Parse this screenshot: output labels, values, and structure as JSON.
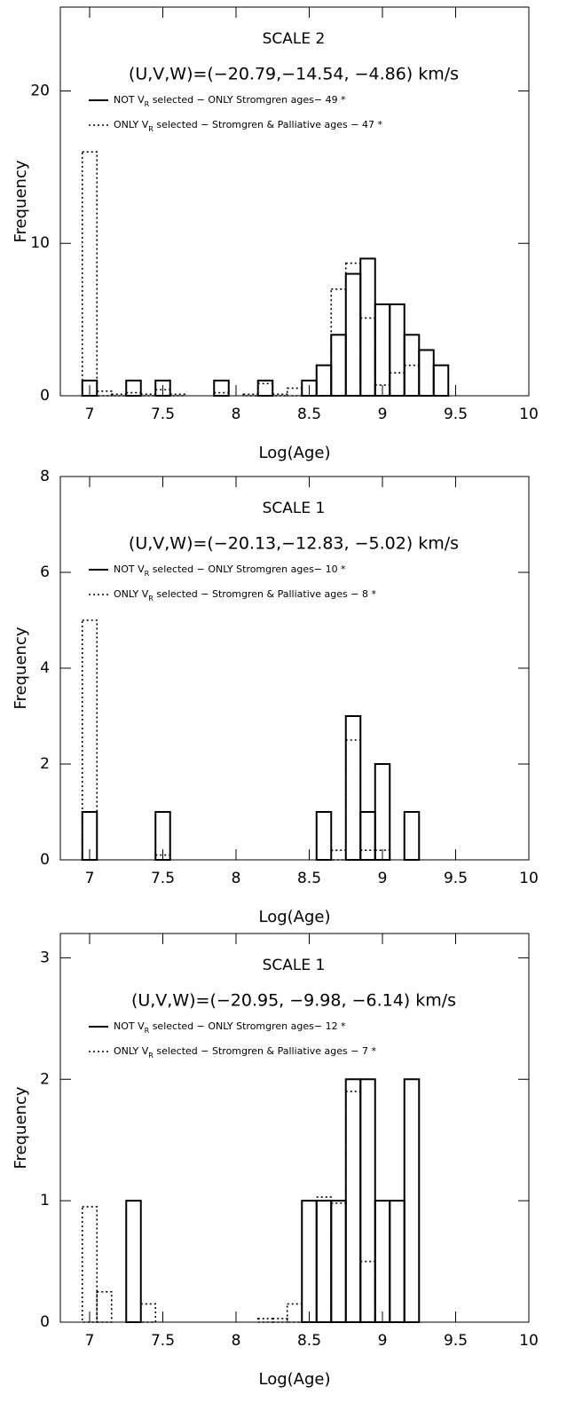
{
  "chart_data": [
    {
      "type": "histogram",
      "title": "SCALE  2",
      "subtitle": "(U,V,W)=(−20.79,−14.54, −4.86) km/s",
      "x_label": "Log(Age)",
      "y_label": "Frequency",
      "bins": [
        6.95,
        7.05,
        7.15,
        7.25,
        7.35,
        7.45,
        7.55,
        7.65,
        7.75,
        7.85,
        7.95,
        8.05,
        8.15,
        8.25,
        8.35,
        8.45,
        8.55,
        8.65,
        8.75,
        8.85,
        8.95,
        9.05,
        9.15,
        9.25,
        9.35,
        9.45
      ],
      "series": [
        {
          "name": "NOT V_R selected  −  ONLY Stromgren ages− 49 *",
          "color": "#000000",
          "linestyle": "solid",
          "values": [
            1,
            0,
            0,
            1,
            0,
            1,
            0,
            0,
            0,
            1,
            0,
            0,
            1,
            0,
            0,
            1,
            2,
            4,
            8,
            9,
            6,
            6,
            4,
            3,
            2
          ]
        },
        {
          "name": "ONLY V_R selected  −  Stromgren & Palliative ages  −  47 *",
          "color": "#000000",
          "linestyle": "dotted",
          "values": [
            16,
            0.3,
            0.1,
            0.2,
            0.1,
            0.4,
            0.1,
            0,
            0,
            0.2,
            0,
            0.1,
            0.8,
            0.1,
            0.5,
            1,
            2,
            7,
            8.7,
            5.1,
            0.7,
            1.5,
            2,
            0,
            0
          ]
        }
      ],
      "xlim": [
        6.8,
        10
      ],
      "xticks": [
        7,
        7.5,
        8,
        8.5,
        9,
        9.5,
        10
      ],
      "ylim": [
        0,
        25.5
      ],
      "yticks": [
        0,
        10,
        20
      ]
    },
    {
      "type": "histogram",
      "title": "SCALE  1",
      "subtitle": "(U,V,W)=(−20.13,−12.83, −5.02) km/s",
      "x_label": "Log(Age)",
      "y_label": "Frequency",
      "bins": [
        6.95,
        7.05,
        7.15,
        7.25,
        7.35,
        7.45,
        7.55,
        7.65,
        7.75,
        7.85,
        7.95,
        8.05,
        8.15,
        8.25,
        8.35,
        8.45,
        8.55,
        8.65,
        8.75,
        8.85,
        8.95,
        9.05,
        9.15,
        9.25,
        9.35,
        9.45
      ],
      "series": [
        {
          "name": "NOT V_R selected  −  ONLY Stromgren ages− 10 *",
          "color": "#000000",
          "linestyle": "solid",
          "values": [
            1,
            0,
            0,
            0,
            0,
            1,
            0,
            0,
            0,
            0,
            0,
            0,
            0,
            0,
            0,
            0,
            1,
            0,
            3,
            1,
            2,
            0,
            1,
            0,
            0
          ]
        },
        {
          "name": "ONLY V_R selected  −  Stromgren & Palliative ages  −   8 *",
          "color": "#000000",
          "linestyle": "dotted",
          "values": [
            5,
            0,
            0,
            0,
            0,
            0.1,
            0,
            0,
            0,
            0,
            0,
            0,
            0,
            0,
            0,
            0,
            0,
            0.2,
            2.5,
            0.2,
            0.2,
            0,
            0,
            0,
            0
          ]
        }
      ],
      "xlim": [
        6.8,
        10
      ],
      "xticks": [
        7,
        7.5,
        8,
        8.5,
        9,
        9.5,
        10
      ],
      "ylim": [
        0,
        8
      ],
      "yticks": [
        0,
        2,
        4,
        6,
        8
      ]
    },
    {
      "type": "histogram",
      "title": "SCALE  1",
      "subtitle": "(U,V,W)=(−20.95, −9.98, −6.14) km/s",
      "x_label": "Log(Age)",
      "y_label": "Frequency",
      "bins": [
        6.95,
        7.05,
        7.15,
        7.25,
        7.35,
        7.45,
        7.55,
        7.65,
        7.75,
        7.85,
        7.95,
        8.05,
        8.15,
        8.25,
        8.35,
        8.45,
        8.55,
        8.65,
        8.75,
        8.85,
        8.95,
        9.05,
        9.15,
        9.25,
        9.35,
        9.45
      ],
      "series": [
        {
          "name": "NOT V_R selected  −  ONLY Stromgren ages− 12 *",
          "color": "#000000",
          "linestyle": "solid",
          "values": [
            0,
            0,
            0,
            1,
            0,
            0,
            0,
            0,
            0,
            0,
            0,
            0,
            0,
            0,
            0,
            1,
            1,
            1,
            2,
            2,
            1,
            1,
            2,
            0,
            0
          ]
        },
        {
          "name": "ONLY V_R selected  −  Stromgren & Palliative ages  −   7 *",
          "color": "#000000",
          "linestyle": "dotted",
          "values": [
            0.95,
            0.25,
            0,
            0,
            0.15,
            0,
            0,
            0,
            0,
            0,
            0,
            0,
            0.03,
            0.03,
            0.15,
            0,
            1.03,
            0.98,
            1.9,
            0.5,
            0,
            0,
            0,
            0,
            0
          ]
        }
      ],
      "xlim": [
        6.8,
        10
      ],
      "xticks": [
        7,
        7.5,
        8,
        8.5,
        9,
        9.5,
        10
      ],
      "ylim": [
        0,
        3.2
      ],
      "yticks": [
        0,
        1,
        2,
        3
      ]
    }
  ]
}
